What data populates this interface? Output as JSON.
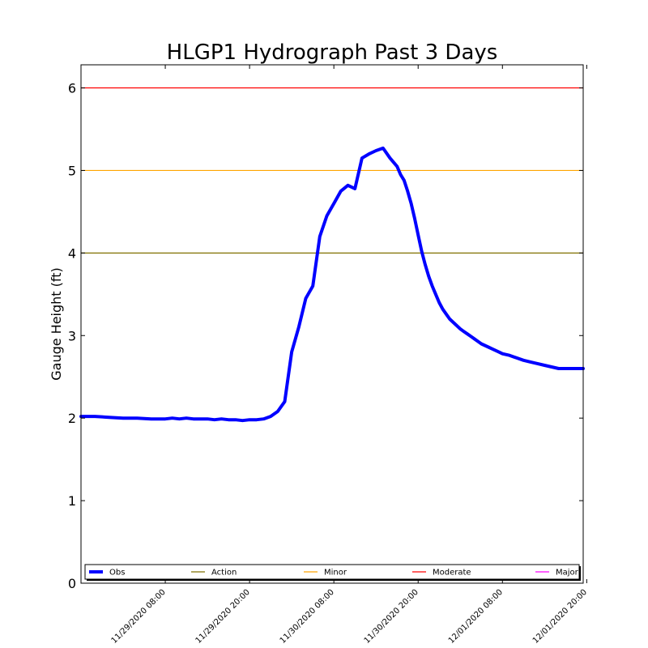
{
  "chart_data": {
    "type": "line",
    "title": "HLGP1 Hydrograph Past 3 Days",
    "ylabel": "Gauge Height (ft)",
    "xlabel": "",
    "ylim": [
      0,
      6.28
    ],
    "x_ticks": [
      "11/29/2020 08:00",
      "11/29/2020 20:00",
      "11/30/2020 08:00",
      "11/30/2020 20:00",
      "12/01/2020 08:00",
      "12/01/2020 20:00"
    ],
    "y_ticks": [
      "0",
      "1",
      "2",
      "3",
      "4",
      "5",
      "6"
    ],
    "x_range_hours": [
      -12,
      59.5
    ],
    "grid": false,
    "legend_location": "bottom",
    "series": [
      {
        "name": "Obs",
        "color": "#0000ff",
        "x_hours": [
          -12,
          -10,
          -8,
          -6,
          -4,
          -2,
          0,
          1,
          2,
          3,
          4,
          5,
          6,
          7,
          8,
          9,
          10,
          11,
          12,
          13,
          14,
          15,
          16,
          17,
          18,
          19,
          20,
          21,
          22,
          23,
          24,
          25,
          26,
          27,
          28,
          29,
          30,
          31,
          32,
          33,
          33.5,
          34,
          34.5,
          35,
          35.5,
          36,
          36.5,
          37,
          37.5,
          38,
          38.5,
          39,
          39.5,
          40,
          40.5,
          41,
          41.5,
          42,
          42.5,
          43,
          43.5,
          44,
          44.5,
          45,
          45.5,
          46,
          46.5,
          47,
          47.5,
          48,
          48.5,
          49,
          50,
          51,
          52,
          53,
          54,
          55,
          56,
          57,
          58,
          59,
          59.5
        ],
        "y": [
          2.02,
          2.02,
          2.01,
          2.0,
          2.0,
          1.99,
          1.99,
          2.0,
          1.99,
          2.0,
          1.99,
          1.99,
          1.99,
          1.98,
          1.99,
          1.98,
          1.98,
          1.97,
          1.98,
          1.98,
          1.99,
          2.02,
          2.08,
          2.2,
          2.8,
          3.1,
          3.45,
          3.6,
          4.2,
          4.45,
          4.6,
          4.75,
          4.82,
          4.78,
          5.15,
          5.2,
          5.24,
          5.27,
          5.15,
          5.05,
          4.95,
          4.88,
          4.75,
          4.6,
          4.42,
          4.22,
          4.02,
          3.86,
          3.72,
          3.6,
          3.5,
          3.4,
          3.32,
          3.26,
          3.2,
          3.16,
          3.12,
          3.08,
          3.05,
          3.02,
          2.99,
          2.96,
          2.93,
          2.9,
          2.88,
          2.86,
          2.84,
          2.82,
          2.8,
          2.78,
          2.77,
          2.76,
          2.73,
          2.7,
          2.68,
          2.66,
          2.64,
          2.62,
          2.6,
          2.6,
          2.6,
          2.6,
          2.6
        ]
      },
      {
        "name": "Action",
        "color": "#807000",
        "value": 4.0
      },
      {
        "name": "Minor",
        "color": "#ffa500",
        "value": 5.0
      },
      {
        "name": "Moderate",
        "color": "#ff0000",
        "value": 6.0
      },
      {
        "name": "Major",
        "color": "#ff00ff",
        "value": null
      }
    ]
  }
}
